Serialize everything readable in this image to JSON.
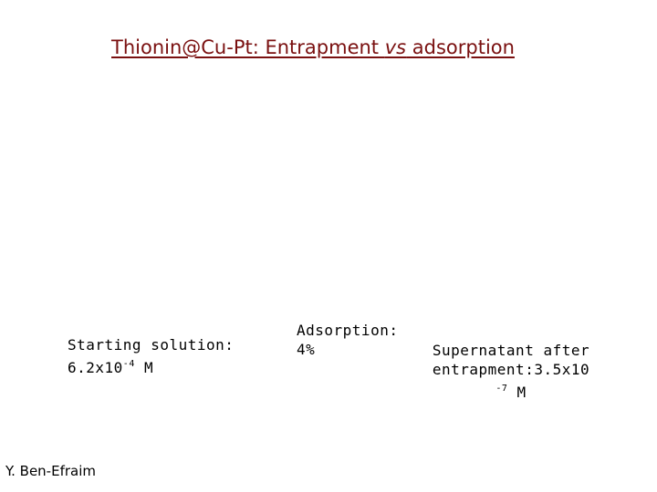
{
  "title": {
    "part1": "Thionin@Cu-Pt: Entrapment ",
    "vs": "vs",
    "part2": " adsorption",
    "color": "#7a1010"
  },
  "starting_solution": {
    "label": "Starting solution:",
    "value": "6.2x10",
    "exponent": "-4",
    "unit": "M"
  },
  "adsorption": {
    "label": "Adsorption:",
    "value": "4%"
  },
  "supernatant": {
    "line1": "Supernatant after",
    "line2": "entrapment:3.5x10",
    "exponent": "-7",
    "unit": "M"
  },
  "author": "Y. Ben-Efraim"
}
